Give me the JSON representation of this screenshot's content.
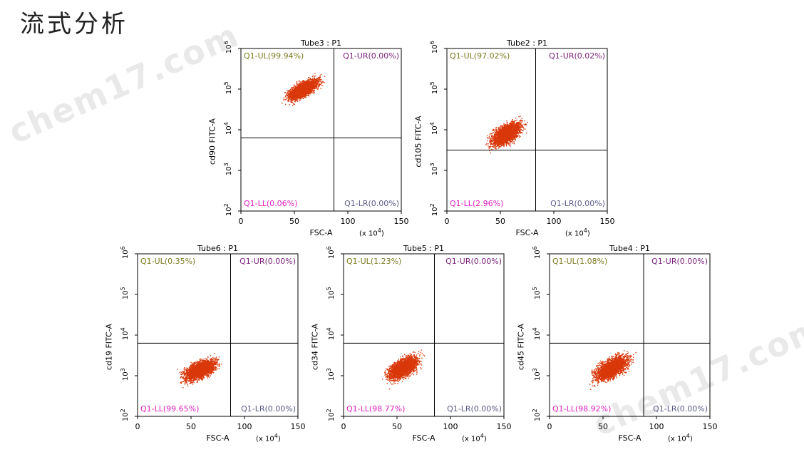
{
  "title": "流式分析",
  "watermark": "chem17.com",
  "colors": {
    "dots": "#d9380a",
    "ul": "#7a7a1e",
    "ur": "#7a1e7a",
    "ll": "#e020c0",
    "lr": "#5a5a8a"
  },
  "x_tick_labels": [
    "0",
    "50",
    "100",
    "150"
  ],
  "x_scale_label": "(x 10",
  "x_scale_exp": "4",
  "x_scale_close": ")",
  "y_tick_base": "10",
  "y_tick_exps": [
    "2",
    "3",
    "4",
    "5",
    "6"
  ],
  "chart_data": [
    {
      "type": "scatter",
      "title": "Tube3 : P1",
      "xlabel": "FSC-A",
      "ylabel": "cd90 FITC-A",
      "xlim": [
        0,
        150
      ],
      "ylim_log10": [
        2,
        6
      ],
      "gate_x": 87,
      "gate_y_log10": 3.8,
      "quadrants": {
        "ul": "Q1-UL(99.94%)",
        "ur": "Q1-UR(0.00%)",
        "ll": "Q1-LL(0.06%)",
        "lr": "Q1-LR(0.00%)"
      },
      "cluster": {
        "x_range": [
          33,
          83
        ],
        "y_log10_range": [
          4.6,
          5.4
        ],
        "slope": 0.012
      }
    },
    {
      "type": "scatter",
      "title": "Tube2 : P1",
      "xlabel": "FSC-A",
      "ylabel": "cd105 FITC-A",
      "xlim": [
        0,
        150
      ],
      "ylim_log10": [
        2,
        6
      ],
      "gate_x": 83,
      "gate_y_log10": 3.5,
      "quadrants": {
        "ul": "Q1-UL(97.02%)",
        "ur": "Q1-UR(0.02%)",
        "ll": "Q1-LL(2.96%)",
        "lr": "Q1-LR(0.00%)"
      },
      "cluster": {
        "x_range": [
          30,
          80
        ],
        "y_log10_range": [
          3.4,
          4.4
        ],
        "slope": 0.012
      }
    },
    {
      "type": "scatter",
      "title": "Tube6 : P1",
      "xlabel": "FSC-A",
      "ylabel": "cd19 FITC-A",
      "xlim": [
        0,
        150
      ],
      "ylim_log10": [
        2,
        6
      ],
      "gate_x": 87,
      "gate_y_log10": 3.8,
      "quadrants": {
        "ul": "Q1-UL(0.35%)",
        "ur": "Q1-UR(0.00%)",
        "ll": "Q1-LL(99.65%)",
        "lr": "Q1-LR(0.00%)"
      },
      "cluster": {
        "x_range": [
          31,
          85
        ],
        "y_log10_range": [
          2.7,
          3.6
        ],
        "slope": 0.01
      }
    },
    {
      "type": "scatter",
      "title": "Tube5 : P1",
      "xlabel": "FSC-A",
      "ylabel": "cd34 FITC-A",
      "xlim": [
        0,
        150
      ],
      "ylim_log10": [
        2,
        6
      ],
      "gate_x": 85,
      "gate_y_log10": 3.8,
      "quadrants": {
        "ul": "Q1-UL(1.23%)",
        "ur": "Q1-UR(0.00%)",
        "ll": "Q1-LL(98.77%)",
        "lr": "Q1-LR(0.00%)"
      },
      "cluster": {
        "x_range": [
          31,
          80
        ],
        "y_log10_range": [
          2.7,
          3.7
        ],
        "slope": 0.012
      }
    },
    {
      "type": "scatter",
      "title": "Tube4 : P1",
      "xlabel": "FSC-A",
      "ylabel": "cd45 FITC-A",
      "xlim": [
        0,
        150
      ],
      "ylim_log10": [
        2,
        6
      ],
      "gate_x": 88,
      "gate_y_log10": 3.8,
      "quadrants": {
        "ul": "Q1-UL(1.08%)",
        "ur": "Q1-UR(0.00%)",
        "ll": "Q1-LL(98.92%)",
        "lr": "Q1-LR(0.00%)"
      },
      "cluster": {
        "x_range": [
          31,
          85
        ],
        "y_log10_range": [
          2.7,
          3.7
        ],
        "slope": 0.012
      }
    }
  ]
}
